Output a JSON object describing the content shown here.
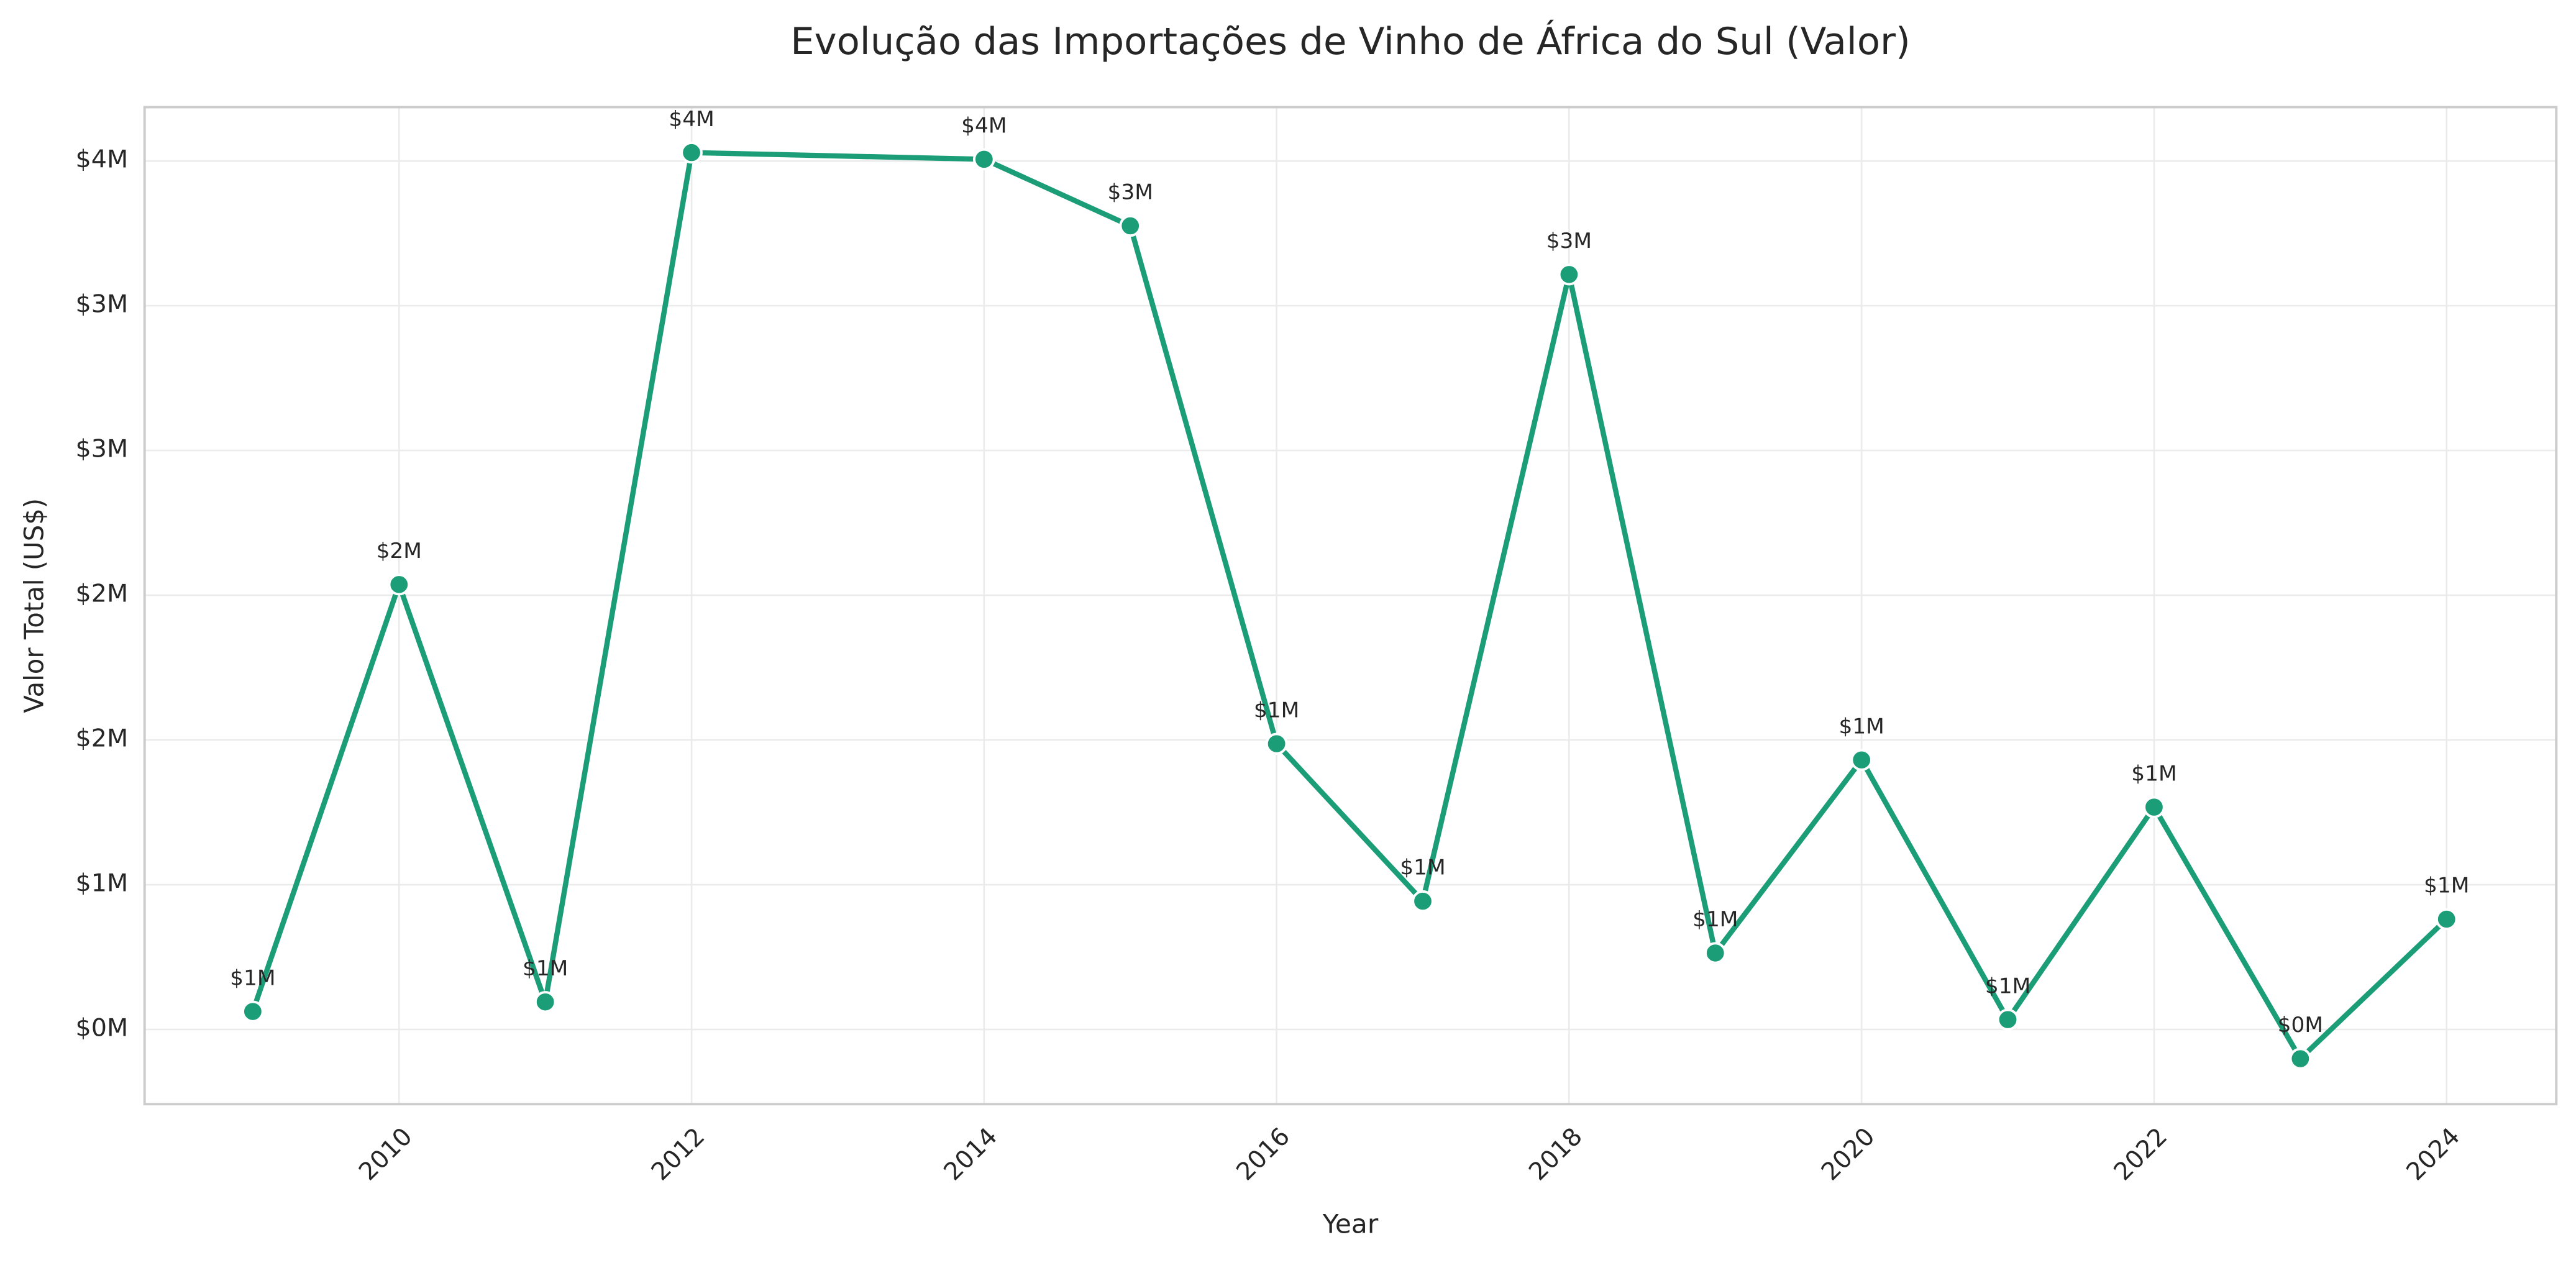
{
  "chart_data": {
    "type": "line",
    "title": "Evolução das Importações de Vinho de África do Sul (Valor)",
    "xlabel": "Year",
    "ylabel": "Valor Total (US$)",
    "x": [
      2009,
      2010,
      2011,
      2012,
      2014,
      2015,
      2016,
      2017,
      2018,
      2019,
      2020,
      2021,
      2022,
      2023,
      2024
    ],
    "series": [
      {
        "name": "Valor",
        "color": "#1b9e77",
        "values": [
          562000,
          2037000,
          595000,
          3529000,
          3506000,
          3276000,
          1487000,
          943000,
          3108000,
          764000,
          1431000,
          534000,
          1268000,
          399000,
          881000
        ],
        "value_labels": [
          "$1M",
          "$2M",
          "$1M",
          "$4M",
          "$4M",
          "$3M",
          "$1M",
          "$1M",
          "$3M",
          "$1M",
          "$1M",
          "$1M",
          "$1M",
          "$0M",
          "$1M"
        ]
      }
    ],
    "xlim": [
      2008.26,
      2024.75
    ],
    "xticks": [
      2010,
      2012,
      2014,
      2016,
      2018,
      2020,
      2022,
      2024
    ],
    "ylim": [
      242000,
      3686000
    ],
    "yticks": [
      {
        "value": 500000,
        "label": "$0M"
      },
      {
        "value": 1000000,
        "label": "$1M"
      },
      {
        "value": 1500000,
        "label": "$2M"
      },
      {
        "value": 2000000,
        "label": "$2M"
      },
      {
        "value": 2500000,
        "label": "$3M"
      },
      {
        "value": 3000000,
        "label": "$3M"
      },
      {
        "value": 3500000,
        "label": "$4M"
      }
    ],
    "grid": true
  }
}
